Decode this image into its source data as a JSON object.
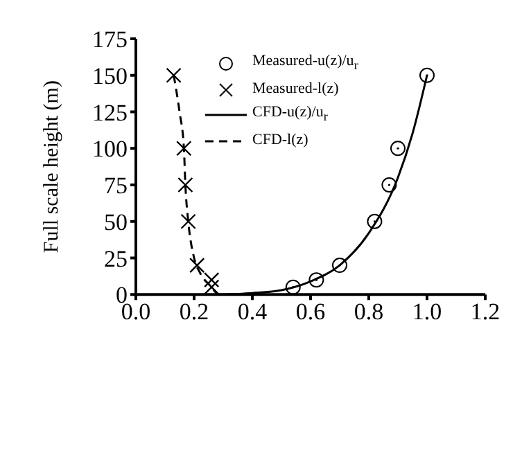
{
  "chart_data": {
    "type": "scatter",
    "ylabel": "Full scale height (m)",
    "xlim": [
      0,
      1.2
    ],
    "xticks": [
      "0.0",
      0.2,
      0.4,
      0.6,
      0.8,
      "1.0",
      1.2
    ],
    "ylim": [
      0,
      175
    ],
    "yticks": [
      0,
      25,
      50,
      75,
      100,
      125,
      150,
      175
    ],
    "legend": "top left",
    "series": [
      {
        "name": "Measured-u(z)/u$_{r}$",
        "marker": "circle",
        "color": "#000000",
        "x": [
          0.54,
          0.62,
          0.7,
          0.82,
          0.87,
          0.9,
          1.0
        ],
        "values": [
          5,
          10,
          20,
          50,
          75,
          100,
          150
        ]
      },
      {
        "name": "Measured-l(z)",
        "marker": "cross",
        "color": "#000000",
        "x": [
          0.13,
          0.165,
          0.17,
          0.18,
          0.21,
          0.26,
          0.26
        ],
        "values": [
          150,
          100,
          75,
          50,
          20,
          10,
          5
        ]
      },
      {
        "name": "CFD-u(z)/u$_{r}$",
        "type": "line",
        "line_style": "solid",
        "marker": "none",
        "color": "#000000",
        "x": [
          0.28,
          0.4,
          0.5,
          0.6,
          0.7,
          0.8,
          0.9,
          0.95,
          1.0
        ],
        "values": [
          0,
          1,
          3,
          9,
          20,
          42,
          80,
          110,
          150
        ]
      },
      {
        "name": "CFD-l(z)",
        "type": "line",
        "line_style": "dashed",
        "marker": "none",
        "color": "#000000",
        "x": [
          0.13,
          0.15,
          0.165,
          0.17,
          0.18,
          0.2,
          0.22,
          0.26,
          0.28
        ],
        "values": [
          150,
          125,
          100,
          75,
          50,
          25,
          15,
          5,
          0
        ]
      }
    ]
  }
}
